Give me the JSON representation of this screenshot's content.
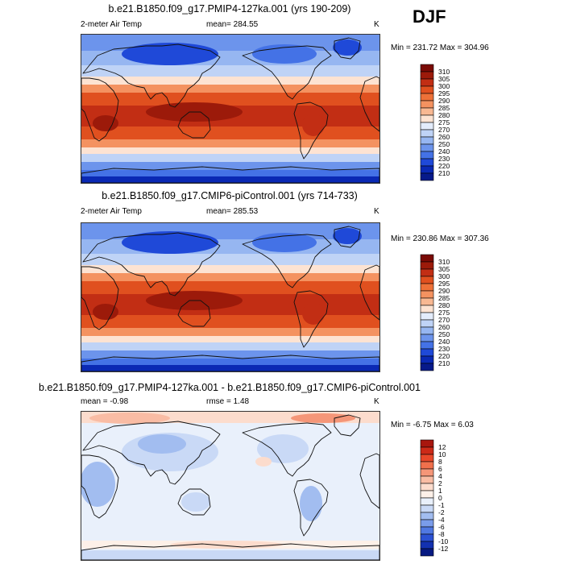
{
  "season": "DJF",
  "panels": [
    {
      "id": "p1",
      "title": "b.e21.B1850.f09_g17.PMIP4-127ka.001 (yrs 190-209)",
      "left_label": "2-meter Air Temp",
      "center_label": "mean= 284.55",
      "right_label": "K",
      "minmax": "Min = 231.72 Max = 304.96",
      "colorbar": {
        "labels": [
          "310",
          "305",
          "300",
          "295",
          "290",
          "285",
          "280",
          "275",
          "270",
          "260",
          "250",
          "240",
          "230",
          "220",
          "210"
        ],
        "colors": [
          "#7a0a05",
          "#9c1a0a",
          "#c22e14",
          "#e0501f",
          "#ee7138",
          "#f49260",
          "#f8b892",
          "#fde3d2",
          "#e3ecfb",
          "#bfd3f6",
          "#96b6f1",
          "#6c94ec",
          "#4472e6",
          "#1f49d8",
          "#0a29b4",
          "#071a8a"
        ]
      }
    },
    {
      "id": "p2",
      "title": "b.e21.B1850.f09_g17.CMIP6-piControl.001 (yrs 714-733)",
      "left_label": "2-meter Air Temp",
      "center_label": "mean= 285.53",
      "right_label": "K",
      "minmax": "Min = 230.86 Max = 307.36",
      "colorbar": {
        "labels": [
          "310",
          "305",
          "300",
          "295",
          "290",
          "285",
          "280",
          "275",
          "270",
          "260",
          "250",
          "240",
          "230",
          "220",
          "210"
        ],
        "colors": [
          "#7a0a05",
          "#9c1a0a",
          "#c22e14",
          "#e0501f",
          "#ee7138",
          "#f49260",
          "#f8b892",
          "#fde3d2",
          "#e3ecfb",
          "#bfd3f6",
          "#96b6f1",
          "#6c94ec",
          "#4472e6",
          "#1f49d8",
          "#0a29b4",
          "#071a8a"
        ]
      }
    },
    {
      "id": "p3",
      "title": "b.e21.B1850.f09_g17.PMIP4-127ka.001 - b.e21.B1850.f09_g17.CMIP6-piControl.001",
      "left_label": "mean =  -0.98",
      "center_label": "rmse =   1.48",
      "right_label": "K",
      "minmax": "Min =  -6.75 Max =   6.03",
      "colorbar": {
        "labels": [
          "12",
          "10",
          "8",
          "6",
          "4",
          "2",
          "1",
          "0",
          "-1",
          "-2",
          "-4",
          "-6",
          "-8",
          "-10",
          "-12"
        ],
        "colors": [
          "#a8160e",
          "#cc2a18",
          "#e8482a",
          "#f0704c",
          "#f59678",
          "#f9bca4",
          "#fcdccd",
          "#fdf0e8",
          "#e9f0fb",
          "#c9d9f6",
          "#a2bdf0",
          "#7a9cea",
          "#5078e2",
          "#2b51d3",
          "#1331b0",
          "#071a82"
        ]
      }
    }
  ]
}
